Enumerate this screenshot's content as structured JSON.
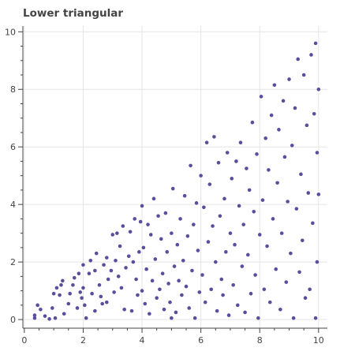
{
  "chart_data": {
    "type": "scatter",
    "title": "Lower triangular",
    "xlabel": "",
    "ylabel": "",
    "xlim": [
      -0.05,
      10.3
    ],
    "ylim": [
      -0.3,
      10.2
    ],
    "x_ticks": [
      "0",
      "2",
      "4",
      "6",
      "8",
      "10"
    ],
    "y_ticks": [
      "0",
      "2",
      "4",
      "6",
      "8",
      "10"
    ],
    "x_tick_values": [
      0,
      2,
      4,
      6,
      8,
      10
    ],
    "y_tick_values": [
      0,
      2,
      4,
      6,
      8,
      10
    ],
    "grid": true,
    "legend": "none",
    "colors": {
      "marker": "#5a4e9c",
      "grid": "#e5e5e5",
      "axis": "#444444"
    },
    "series": [
      {
        "points": [
          [
            0.35,
            0.05
          ],
          [
            0.35,
            0.15
          ],
          [
            0.45,
            0.5
          ],
          [
            0.55,
            0.35
          ],
          [
            0.7,
            0.12
          ],
          [
            0.85,
            0.02
          ],
          [
            0.95,
            0.4
          ],
          [
            1.0,
            0.9
          ],
          [
            1.05,
            0.05
          ],
          [
            1.1,
            1.1
          ],
          [
            1.2,
            0.85
          ],
          [
            1.25,
            1.2
          ],
          [
            1.3,
            1.35
          ],
          [
            1.35,
            0.2
          ],
          [
            1.5,
            0.55
          ],
          [
            1.55,
            0.9
          ],
          [
            1.65,
            1.2
          ],
          [
            1.7,
            1.45
          ],
          [
            1.8,
            0.4
          ],
          [
            1.85,
            1.6
          ],
          [
            1.9,
            0.95
          ],
          [
            1.95,
            0.75
          ],
          [
            2.0,
            1.1
          ],
          [
            2.0,
            1.9
          ],
          [
            2.05,
            0.5
          ],
          [
            2.1,
            0.05
          ],
          [
            2.2,
            1.6
          ],
          [
            2.25,
            2.05
          ],
          [
            2.3,
            0.9
          ],
          [
            2.4,
            1.7
          ],
          [
            2.4,
            0.3
          ],
          [
            2.45,
            2.3
          ],
          [
            2.55,
            1.2
          ],
          [
            2.6,
            0.8
          ],
          [
            2.65,
            0.55
          ],
          [
            2.7,
            1.9
          ],
          [
            2.8,
            2.15
          ],
          [
            2.8,
            0.6
          ],
          [
            2.85,
            1.4
          ],
          [
            2.95,
            1.7
          ],
          [
            3.0,
            2.95
          ],
          [
            3.05,
            0.95
          ],
          [
            3.1,
            2.05
          ],
          [
            3.15,
            3.0
          ],
          [
            3.2,
            1.5
          ],
          [
            3.25,
            2.55
          ],
          [
            3.3,
            1.1
          ],
          [
            3.35,
            3.25
          ],
          [
            3.4,
            0.35
          ],
          [
            3.45,
            1.8
          ],
          [
            3.55,
            2.2
          ],
          [
            3.6,
            3.05
          ],
          [
            3.65,
            0.3
          ],
          [
            3.7,
            2.0
          ],
          [
            3.75,
            3.5
          ],
          [
            3.8,
            1.4
          ],
          [
            3.85,
            0.85
          ],
          [
            3.9,
            2.35
          ],
          [
            3.95,
            3.4
          ],
          [
            4.0,
            1.0
          ],
          [
            4.0,
            3.95
          ],
          [
            4.05,
            2.5
          ],
          [
            4.1,
            0.55
          ],
          [
            4.15,
            1.75
          ],
          [
            4.2,
            3.3
          ],
          [
            4.25,
            0.2
          ],
          [
            4.3,
            2.95
          ],
          [
            4.35,
            1.35
          ],
          [
            4.4,
            4.2
          ],
          [
            4.45,
            2.1
          ],
          [
            4.5,
            0.75
          ],
          [
            4.55,
            3.6
          ],
          [
            4.6,
            1.05
          ],
          [
            4.65,
            2.8
          ],
          [
            4.7,
            1.6
          ],
          [
            4.75,
            0.35
          ],
          [
            4.8,
            3.7
          ],
          [
            4.85,
            2.35
          ],
          [
            4.9,
            1.25
          ],
          [
            4.95,
            0.6
          ],
          [
            5.0,
            3.0
          ],
          [
            5.0,
            0.05
          ],
          [
            5.05,
            4.55
          ],
          [
            5.1,
            1.85
          ],
          [
            5.15,
            0.25
          ],
          [
            5.2,
            2.6
          ],
          [
            5.25,
            1.35
          ],
          [
            5.3,
            3.5
          ],
          [
            5.35,
            0.85
          ],
          [
            5.4,
            2.05
          ],
          [
            5.45,
            4.3
          ],
          [
            5.5,
            1.15
          ],
          [
            5.55,
            2.9
          ],
          [
            5.6,
            0.4
          ],
          [
            5.65,
            5.35
          ],
          [
            5.7,
            1.7
          ],
          [
            5.75,
            3.3
          ],
          [
            5.8,
            0.05
          ],
          [
            5.85,
            4.05
          ],
          [
            5.9,
            2.4
          ],
          [
            5.95,
            0.95
          ],
          [
            6.0,
            5.0
          ],
          [
            6.05,
            1.55
          ],
          [
            6.1,
            3.9
          ],
          [
            6.15,
            0.6
          ],
          [
            6.2,
            6.15
          ],
          [
            6.25,
            2.7
          ],
          [
            6.3,
            4.7
          ],
          [
            6.35,
            1.05
          ],
          [
            6.4,
            3.25
          ],
          [
            6.45,
            6.35
          ],
          [
            6.5,
            2.0
          ],
          [
            6.55,
            0.3
          ],
          [
            6.6,
            5.45
          ],
          [
            6.65,
            3.6
          ],
          [
            6.7,
            1.4
          ],
          [
            6.75,
            0.85
          ],
          [
            6.8,
            4.2
          ],
          [
            6.85,
            2.35
          ],
          [
            6.9,
            5.8
          ],
          [
            6.95,
            0.15
          ],
          [
            7.0,
            3.0
          ],
          [
            7.05,
            4.9
          ],
          [
            7.1,
            1.2
          ],
          [
            7.15,
            2.6
          ],
          [
            7.2,
            5.5
          ],
          [
            7.25,
            0.5
          ],
          [
            7.3,
            3.95
          ],
          [
            7.35,
            6.15
          ],
          [
            7.4,
            1.85
          ],
          [
            7.45,
            3.3
          ],
          [
            7.5,
            0.25
          ],
          [
            7.55,
            5.25
          ],
          [
            7.6,
            2.25
          ],
          [
            7.65,
            4.5
          ],
          [
            7.7,
            0.9
          ],
          [
            7.75,
            6.85
          ],
          [
            7.8,
            3.75
          ],
          [
            7.85,
            1.55
          ],
          [
            7.9,
            5.75
          ],
          [
            7.95,
            0.05
          ],
          [
            8.0,
            2.95
          ],
          [
            8.05,
            7.75
          ],
          [
            8.1,
            4.15
          ],
          [
            8.15,
            1.05
          ],
          [
            8.2,
            6.3
          ],
          [
            8.25,
            2.55
          ],
          [
            8.3,
            5.2
          ],
          [
            8.35,
            0.6
          ],
          [
            8.4,
            7.1
          ],
          [
            8.45,
            3.5
          ],
          [
            8.5,
            8.15
          ],
          [
            8.55,
            1.75
          ],
          [
            8.6,
            4.75
          ],
          [
            8.65,
            6.6
          ],
          [
            8.7,
            0.35
          ],
          [
            8.75,
            3.0
          ],
          [
            8.8,
            7.6
          ],
          [
            8.85,
            5.65
          ],
          [
            8.9,
            1.3
          ],
          [
            8.95,
            4.1
          ],
          [
            9.0,
            8.35
          ],
          [
            9.05,
            2.3
          ],
          [
            9.1,
            6.05
          ],
          [
            9.15,
            0.05
          ],
          [
            9.2,
            7.35
          ],
          [
            9.25,
            3.85
          ],
          [
            9.3,
            9.05
          ],
          [
            9.35,
            1.65
          ],
          [
            9.4,
            5.05
          ],
          [
            9.45,
            2.75
          ],
          [
            9.5,
            8.5
          ],
          [
            9.55,
            0.75
          ],
          [
            9.6,
            6.75
          ],
          [
            9.65,
            4.4
          ],
          [
            9.7,
            1.05
          ],
          [
            9.75,
            9.2
          ],
          [
            9.8,
            3.35
          ],
          [
            9.85,
            7.15
          ],
          [
            9.9,
            0.05
          ],
          [
            9.9,
            9.6
          ],
          [
            9.95,
            5.8
          ],
          [
            9.95,
            2.0
          ],
          [
            10.0,
            4.35
          ],
          [
            10.0,
            8.0
          ]
        ]
      }
    ]
  }
}
